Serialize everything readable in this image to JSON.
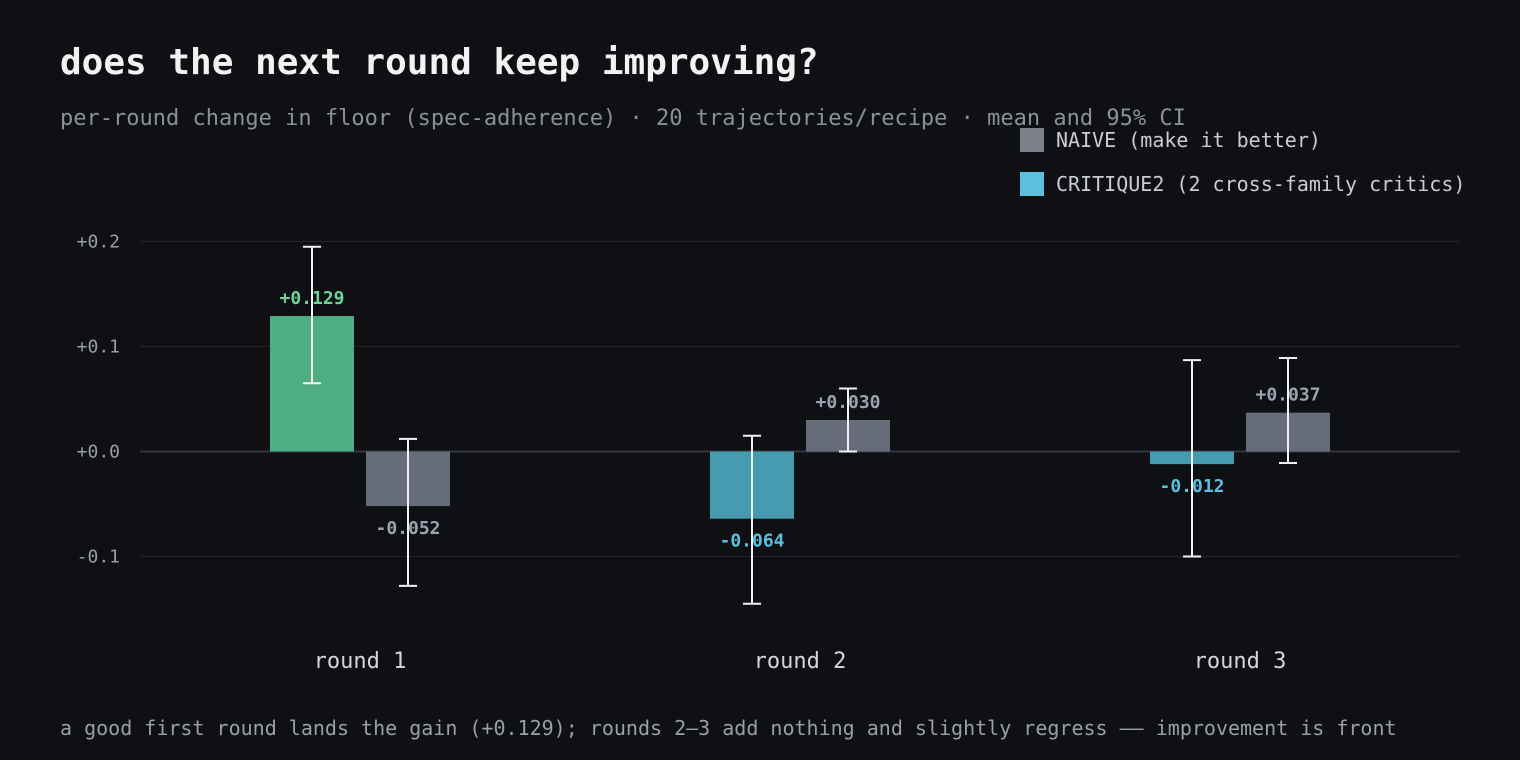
{
  "title": "does the next round keep improving?",
  "subtitle": "per-round change in floor (spec-adherence) · 20 trajectories/recipe · mean and 95% CI",
  "footnote": "a good first round lands the gain (+0.129); rounds 2–3 add nothing and slightly regress —— improvement is front",
  "colors": {
    "naive": "#6b7280",
    "critique": "#4aa3b8",
    "good": "#52b788",
    "critique_label": "#5bc0de",
    "naive_label": "#9ca3af",
    "good_label": "#6ed39a",
    "grid": "#22252b",
    "zero": "#33363d",
    "errorbar": "#f2f2f2"
  },
  "legend": [
    {
      "label": "NAIVE (make it better)",
      "color": "#7c818b"
    },
    {
      "label": "CRITIQUE2 (2 cross-family critics)",
      "color": "#5bc0de"
    }
  ],
  "chart_data": {
    "type": "bar",
    "categories": [
      "round 1",
      "round 2",
      "round 3"
    ],
    "ylim": [
      -0.15,
      0.2
    ],
    "yticks": [
      0.2,
      0.1,
      0.0,
      -0.1
    ],
    "ytick_labels": [
      "+0.2",
      "+0.1",
      "+0.0",
      "-0.1"
    ],
    "grid": true,
    "legend_position": "top-right",
    "series": [
      {
        "name": "CRITIQUE2 (2 cross-family critics)",
        "values": [
          0.129,
          -0.064,
          -0.012
        ],
        "labels": [
          "+0.129",
          "-0.064",
          "-0.012"
        ],
        "ci_low": [
          0.065,
          -0.145,
          -0.1
        ],
        "ci_high": [
          0.195,
          0.015,
          0.087
        ]
      },
      {
        "name": "NAIVE (make it better)",
        "values": [
          -0.052,
          0.03,
          0.037
        ],
        "labels": [
          "-0.052",
          "+0.030",
          "+0.037"
        ],
        "ci_low": [
          -0.128,
          0.0,
          -0.011
        ],
        "ci_high": [
          0.012,
          0.06,
          0.089
        ]
      }
    ]
  }
}
